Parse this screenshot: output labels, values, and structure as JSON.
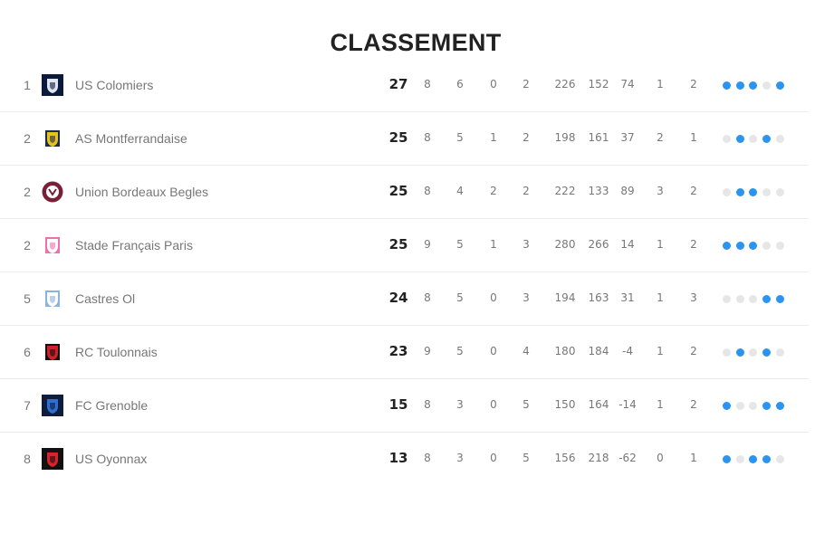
{
  "title": "CLASSEMENT",
  "colors": {
    "win": "#2b93f0",
    "other": "#e6e6e6"
  },
  "rows": [
    {
      "rank": "1",
      "team": "US Colomiers",
      "logo": "us-colomiers-logo",
      "logo_colors": [
        "#0b1a3a",
        "#dfe6f2"
      ],
      "pts": "27",
      "stats": [
        "8",
        "6",
        "0",
        "2",
        "226",
        "152",
        "74",
        "1",
        "2"
      ],
      "form": [
        1,
        1,
        1,
        0,
        1
      ]
    },
    {
      "rank": "2",
      "team": "AS Montferrandaise",
      "logo": "asm-logo",
      "logo_colors": [
        "#1d2a4a",
        "#e8c21c"
      ],
      "pts": "25",
      "stats": [
        "8",
        "5",
        "1",
        "2",
        "198",
        "161",
        "37",
        "2",
        "1"
      ],
      "form": [
        0,
        1,
        0,
        1,
        0
      ]
    },
    {
      "rank": "2",
      "team": "Union Bordeaux Begles",
      "logo": "ubb-logo",
      "logo_colors": [
        "#7a1f35",
        "#ffffff"
      ],
      "pts": "25",
      "stats": [
        "8",
        "4",
        "2",
        "2",
        "222",
        "133",
        "89",
        "3",
        "2"
      ],
      "form": [
        0,
        1,
        1,
        0,
        0
      ]
    },
    {
      "rank": "2",
      "team": "Stade Français Paris",
      "logo": "stade-francais-logo",
      "logo_colors": [
        "#f06fb0",
        "#ffffff"
      ],
      "pts": "25",
      "stats": [
        "9",
        "5",
        "1",
        "3",
        "280",
        "266",
        "14",
        "1",
        "2"
      ],
      "form": [
        1,
        1,
        1,
        0,
        0
      ]
    },
    {
      "rank": "5",
      "team": "Castres Ol",
      "logo": "castres-logo",
      "logo_colors": [
        "#8ab4dc",
        "#ffffff"
      ],
      "pts": "24",
      "stats": [
        "8",
        "5",
        "0",
        "3",
        "194",
        "163",
        "31",
        "1",
        "3"
      ],
      "form": [
        0,
        0,
        0,
        1,
        1
      ]
    },
    {
      "rank": "6",
      "team": "RC Toulonnais",
      "logo": "rct-logo",
      "logo_colors": [
        "#111111",
        "#d0202a"
      ],
      "pts": "23",
      "stats": [
        "9",
        "5",
        "0",
        "4",
        "180",
        "184",
        "-4",
        "1",
        "2"
      ],
      "form": [
        0,
        1,
        0,
        1,
        0
      ]
    },
    {
      "rank": "7",
      "team": "FC Grenoble",
      "logo": "fc-grenoble-logo",
      "logo_colors": [
        "#0e1c3e",
        "#2f6fd0"
      ],
      "pts": "15",
      "stats": [
        "8",
        "3",
        "0",
        "5",
        "150",
        "164",
        "-14",
        "1",
        "2"
      ],
      "form": [
        1,
        0,
        0,
        1,
        1
      ]
    },
    {
      "rank": "8",
      "team": "US Oyonnax",
      "logo": "us-oyonnax-logo",
      "logo_colors": [
        "#111111",
        "#d8232a"
      ],
      "pts": "13",
      "stats": [
        "8",
        "3",
        "0",
        "5",
        "156",
        "218",
        "-62",
        "0",
        "1"
      ],
      "form": [
        1,
        0,
        1,
        1,
        0
      ]
    }
  ]
}
